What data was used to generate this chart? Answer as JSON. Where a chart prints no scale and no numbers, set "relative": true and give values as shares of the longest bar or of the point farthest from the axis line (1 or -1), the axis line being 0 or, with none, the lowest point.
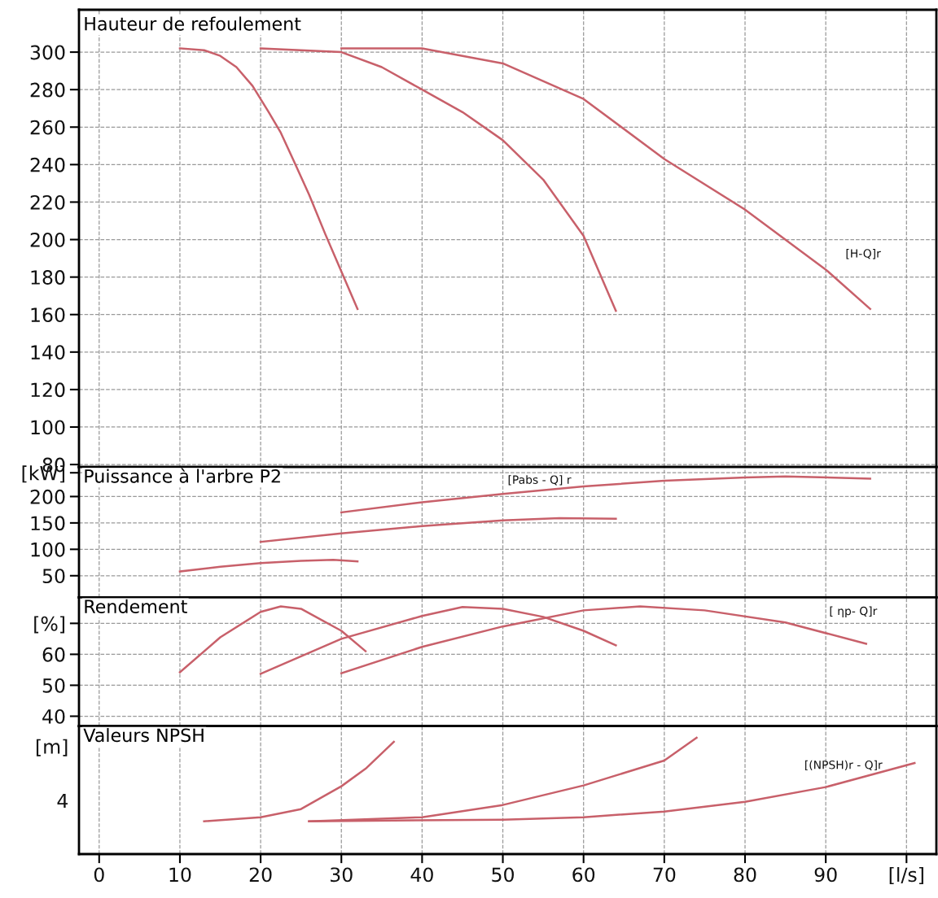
{
  "chart_data": [
    {
      "type": "line",
      "title": "Hauteur de refoulement",
      "xlim": [
        -2.5,
        103.7
      ],
      "ylim": [
        78.7,
        322.6
      ],
      "yticks": [
        80,
        100,
        120,
        140,
        160,
        180,
        200,
        220,
        240,
        260,
        280,
        300
      ],
      "grid": true,
      "tick_labels": "y",
      "marker": "none",
      "series": [
        {
          "color": "#c8606a",
          "x": [
            10,
            13,
            15,
            17,
            19,
            21,
            22.5,
            24,
            26,
            28,
            30,
            32
          ],
          "values": [
            302,
            301,
            298,
            292,
            282,
            268,
            257,
            243,
            224,
            203,
            183,
            163
          ]
        },
        {
          "color": "#c8606a",
          "x": [
            20,
            30,
            35,
            40,
            45,
            50,
            55,
            60,
            64
          ],
          "values": [
            302,
            300,
            292,
            280,
            268,
            253,
            232,
            202,
            162
          ]
        },
        {
          "color": "#c8606a",
          "x": [
            30,
            40,
            50,
            60,
            70,
            80,
            90,
            95.5
          ],
          "values": [
            302,
            302,
            294,
            275,
            243,
            216,
            184,
            163
          ]
        }
      ],
      "annotations": [
        "[H-Q]r"
      ]
    },
    {
      "type": "line",
      "title": "Puissance à l'arbre P2",
      "xlim": [
        -2.5,
        103.7
      ],
      "ylim": [
        9,
        256
      ],
      "yticks": [
        50,
        100,
        150,
        200,
        {
          "value": 245,
          "label": "[kW]"
        }
      ],
      "grid": true,
      "tick_labels": "y",
      "marker": "none",
      "series": [
        {
          "color": "#c8606a",
          "x": [
            10,
            15,
            20,
            25,
            29,
            32
          ],
          "values": [
            58,
            67,
            74,
            78,
            80,
            77
          ]
        },
        {
          "color": "#c8606a",
          "x": [
            20,
            30,
            40,
            50,
            57,
            64
          ],
          "values": [
            114,
            130,
            144,
            155,
            159,
            158
          ]
        },
        {
          "color": "#c8606a",
          "x": [
            30,
            40,
            50,
            60,
            70,
            80,
            85,
            95.5
          ],
          "values": [
            170,
            189,
            205,
            219,
            230,
            236,
            238,
            234
          ]
        }
      ],
      "annotations": [
        "[Pabs - Q] r"
      ]
    },
    {
      "type": "line",
      "title": "Rendement",
      "xlim": [
        -2.5,
        103.7
      ],
      "ylim": [
        36.8,
        78.4
      ],
      "yticks": [
        40,
        50,
        60,
        {
          "value": 70,
          "label": "[%]"
        }
      ],
      "grid": true,
      "tick_labels": "y",
      "marker": "none",
      "series": [
        {
          "color": "#c8606a",
          "x": [
            10,
            15,
            20,
            22.5,
            25,
            30,
            33
          ],
          "values": [
            54.2,
            65.5,
            73.7,
            75.5,
            74.7,
            67.6,
            61
          ]
        },
        {
          "color": "#c8606a",
          "x": [
            20,
            30,
            40,
            45,
            50,
            55,
            60,
            64
          ],
          "values": [
            53.7,
            65,
            72.4,
            75.3,
            74.7,
            72.1,
            67.6,
            62.9
          ]
        },
        {
          "color": "#c8606a",
          "x": [
            30,
            40,
            50,
            60,
            67,
            75,
            85,
            95
          ],
          "values": [
            53.9,
            62.4,
            69,
            74.2,
            75.5,
            74.2,
            70.3,
            63.4
          ]
        }
      ],
      "annotations": [
        "[ ηp- Q]r"
      ]
    },
    {
      "type": "line",
      "title": "Valeurs NPSH",
      "xlim": [
        -2.5,
        103.7
      ],
      "xticks": [
        0,
        10,
        20,
        30,
        40,
        50,
        60,
        70,
        80,
        90,
        {
          "value": 100,
          "label": "[l/s]"
        }
      ],
      "relative": true,
      "grid": "x",
      "marker": "none",
      "series": [
        {
          "color": "#c8606a",
          "x": [
            13,
            20,
            25,
            30,
            33,
            36.5
          ],
          "values": [
            0.282,
            0.317,
            0.387,
            0.583,
            0.734,
            0.965
          ]
        },
        {
          "color": "#c8606a",
          "x": [
            26,
            40,
            50,
            60,
            70,
            74
          ],
          "values": [
            0.282,
            0.317,
            0.422,
            0.59,
            0.804,
            1
          ]
        },
        {
          "color": "#c8606a",
          "x": [
            26,
            50,
            60,
            70,
            80,
            90,
            101
          ],
          "values": [
            0.282,
            0.296,
            0.317,
            0.366,
            0.45,
            0.576,
            0.783
          ]
        }
      ],
      "annotations": [
        "[(NPSH)r - Q]r",
        "[m]",
        "4"
      ]
    }
  ]
}
